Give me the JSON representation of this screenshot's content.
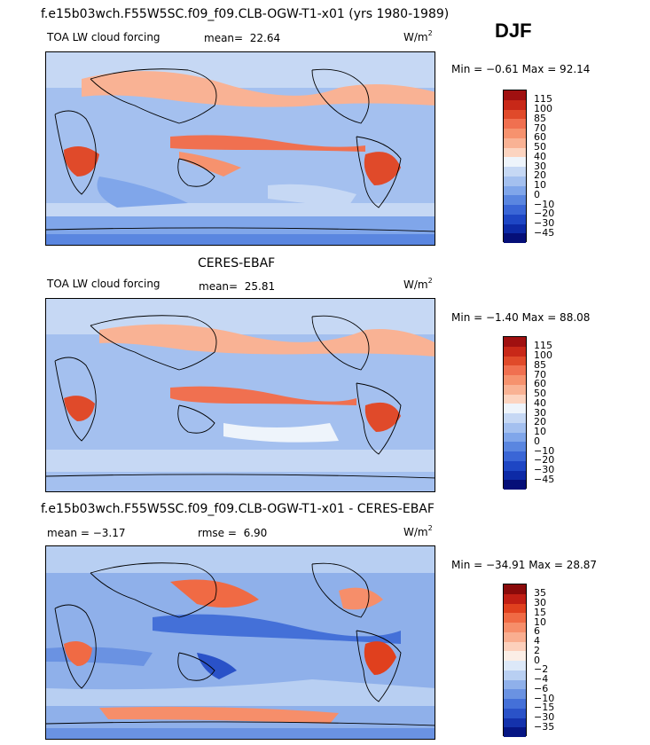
{
  "season": "DJF",
  "panels": [
    {
      "title": "f.e15b03wch.F55W5SC.f09_f09.CLB-OGW-T1-x01 (yrs 1980-1989)",
      "left_label": "TOA LW cloud forcing",
      "stat_label": "mean=",
      "stat_value": "22.64",
      "unit": "W/m",
      "unit_exp": "2",
      "minmax": "Min =   −0.61 Max =  92.14",
      "colorbar_ticks": [
        "115",
        "100",
        "85",
        "70",
        "60",
        "50",
        "40",
        "30",
        "20",
        "10",
        "0",
        "−10",
        "−20",
        "−30",
        "−45"
      ],
      "colors": [
        "#a01010",
        "#c82818",
        "#e04a2a",
        "#f07050",
        "#f6926e",
        "#f9b294",
        "#fcd4c0",
        "#eef4fb",
        "#c6d8f4",
        "#a4c0ef",
        "#80a6ea",
        "#5a86e0",
        "#3a66d6",
        "#1e46c4",
        "#0d2aa6",
        "#050f78"
      ]
    },
    {
      "title": "CERES-EBAF",
      "left_label": "TOA LW cloud forcing",
      "stat_label": "mean=",
      "stat_value": "25.81",
      "unit": "W/m",
      "unit_exp": "2",
      "minmax": "Min =   −1.40 Max =  88.08",
      "colorbar_ticks": [
        "115",
        "100",
        "85",
        "70",
        "60",
        "50",
        "40",
        "30",
        "20",
        "10",
        "0",
        "−10",
        "−20",
        "−30",
        "−45"
      ],
      "colors": [
        "#a01010",
        "#c82818",
        "#e04a2a",
        "#f07050",
        "#f6926e",
        "#f9b294",
        "#fcd4c0",
        "#eef4fb",
        "#c6d8f4",
        "#a4c0ef",
        "#80a6ea",
        "#5a86e0",
        "#3a66d6",
        "#1e46c4",
        "#0d2aa6",
        "#050f78"
      ]
    },
    {
      "title": "f.e15b03wch.F55W5SC.f09_f09.CLB-OGW-T1-x01 - CERES-EBAF",
      "left_label": "mean =   −3.17",
      "stat_label": "rmse =",
      "stat_value": "6.90",
      "unit": "W/m",
      "unit_exp": "2",
      "minmax": "Min = −34.91 Max =  28.87",
      "colorbar_ticks": [
        "35",
        "30",
        "15",
        "10",
        "6",
        "4",
        "2",
        "0",
        "−2",
        "−4",
        "−6",
        "−10",
        "−15",
        "−30",
        "−35"
      ],
      "colors": [
        "#8a0a0a",
        "#c01e14",
        "#e0401e",
        "#f06a44",
        "#f68e6a",
        "#f9ae90",
        "#fcd0bc",
        "#fbeee6",
        "#dce8f8",
        "#b8cff2",
        "#8fb0ea",
        "#6a92e2",
        "#4470d8",
        "#2a52c8",
        "#1432ac",
        "#061684"
      ]
    }
  ]
}
